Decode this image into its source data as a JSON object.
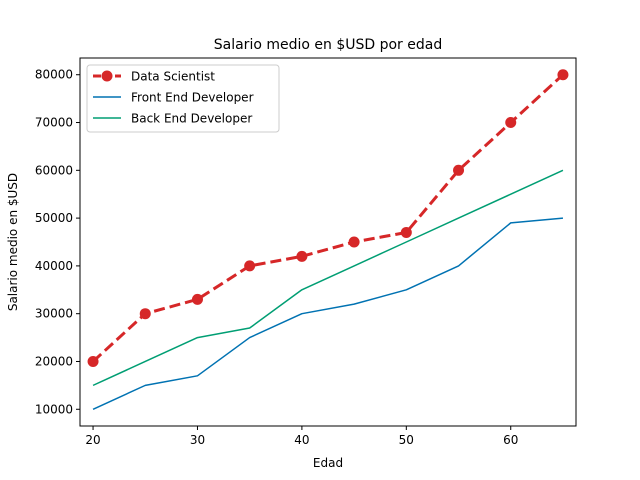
{
  "chart_data": {
    "type": "line",
    "title": "Salario medio en $USD por edad",
    "xlabel": "Edad",
    "ylabel": "Salario medio en $USD",
    "x": [
      20,
      25,
      30,
      35,
      40,
      45,
      50,
      55,
      60,
      65
    ],
    "xlim": [
      18.75,
      66.25
    ],
    "ylim": [
      6500,
      83500
    ],
    "xticks": [
      20,
      30,
      40,
      50,
      60
    ],
    "yticks": [
      10000,
      20000,
      30000,
      40000,
      50000,
      60000,
      70000,
      80000
    ],
    "grid": false,
    "legend_position": "top-left",
    "series": [
      {
        "name": "Data Scientist",
        "color": "#d62728",
        "style": "dashed-with-markers",
        "values": [
          20000,
          30000,
          33000,
          40000,
          42000,
          45000,
          47000,
          60000,
          70000,
          80000
        ]
      },
      {
        "name": "Front End Developer",
        "color": "#0072b2",
        "style": "solid",
        "values": [
          10000,
          15000,
          17000,
          25000,
          30000,
          32000,
          35000,
          40000,
          49000,
          50000
        ]
      },
      {
        "name": "Back End Developer",
        "color": "#009e73",
        "style": "solid",
        "values": [
          15000,
          20000,
          25000,
          27000,
          35000,
          40000,
          45000,
          50000,
          55000,
          60000
        ]
      }
    ]
  }
}
